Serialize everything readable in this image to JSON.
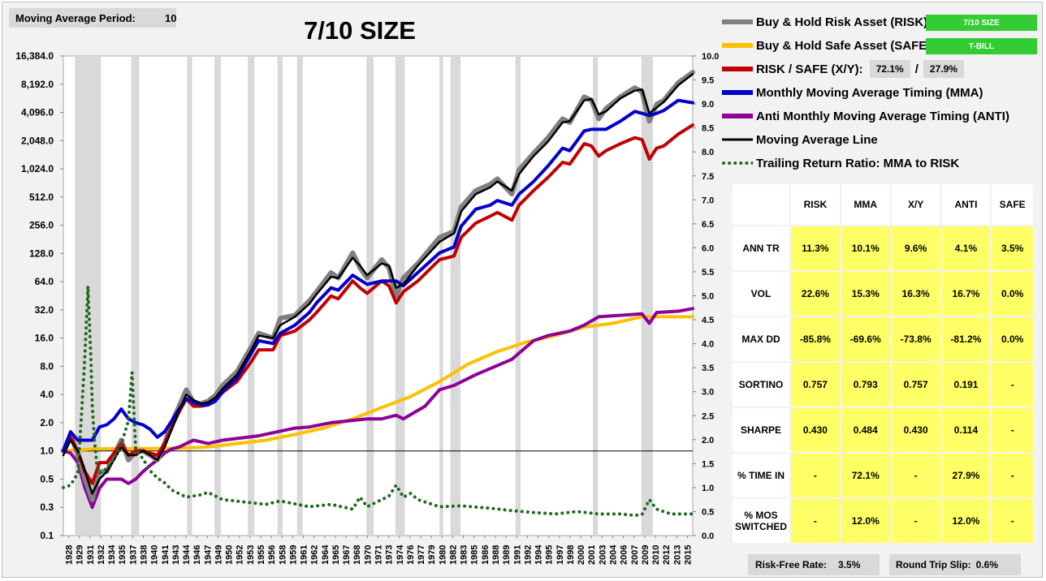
{
  "header": {
    "ma_period_label": "Moving Average Period:",
    "ma_period_value": "10",
    "title": "7/10 SIZE"
  },
  "legend": {
    "risk_label": "Buy & Hold Risk Asset (RISK):",
    "risk_tag": "7/10 SIZE",
    "safe_label": "Buy & Hold Safe Asset (SAFE):",
    "safe_tag": "T-BILL",
    "xy_label": "RISK / SAFE (X/Y):",
    "xy_risk_pct": "72.1%",
    "xy_sep": "/",
    "xy_safe_pct": "27.9%",
    "mma_label": "Monthly Moving Average Timing (MMA)",
    "anti_label": "Anti Monthly Moving Average Timing (ANTI)",
    "ma_line_label": "Moving Average Line",
    "ratio_label": "Trailing Return Ratio: MMA to RISK"
  },
  "stats": {
    "columns": [
      "",
      "RISK",
      "MMA",
      "X/Y",
      "ANTI",
      "SAFE"
    ],
    "rows": [
      {
        "label": "ANN TR",
        "values": [
          "11.3%",
          "10.1%",
          "9.6%",
          "4.1%",
          "3.5%"
        ]
      },
      {
        "label": "VOL",
        "values": [
          "22.6%",
          "15.3%",
          "16.3%",
          "16.7%",
          "0.0%"
        ]
      },
      {
        "label": "MAX DD",
        "values": [
          "-85.8%",
          "-69.6%",
          "-73.8%",
          "-81.2%",
          "0.0%"
        ]
      },
      {
        "label": "SORTINO",
        "values": [
          "0.757",
          "0.793",
          "0.757",
          "0.191",
          "-"
        ]
      },
      {
        "label": "SHARPE",
        "values": [
          "0.430",
          "0.484",
          "0.430",
          "0.114",
          "-"
        ]
      },
      {
        "label": "% TIME IN",
        "values": [
          "-",
          "72.1%",
          "-",
          "27.9%",
          "-"
        ]
      },
      {
        "label": "% MOS SWITCHED",
        "values": [
          "-",
          "12.0%",
          "-",
          "12.0%",
          "-"
        ]
      }
    ]
  },
  "footer": {
    "rf_label": "Risk-Free Rate:",
    "rf_value": "3.5%",
    "slip_label": "Round Trip Slip:",
    "slip_value": "0.6%"
  },
  "colors": {
    "risk": "#808080",
    "safe": "#ffc000",
    "xy": "#c00000",
    "mma": "#0000cc",
    "anti": "#8e0096",
    "ma_line": "#000000",
    "ratio": "#1e6b1e",
    "recession": "#d9d9d9"
  },
  "chart_data": {
    "type": "line",
    "y_left_scale": "log2",
    "y_left_ticks": [
      "16,384.0",
      "8,192.0",
      "4,096.0",
      "2,048.0",
      "1,024.0",
      "512.0",
      "256.0",
      "128.0",
      "64.0",
      "32.0",
      "16.0",
      "8.0",
      "4.0",
      "2.0",
      "1.0",
      "0.5",
      "0.3",
      "0.1"
    ],
    "y_left_tick_values": [
      16384,
      8192,
      4096,
      2048,
      1024,
      512,
      256,
      128,
      64,
      32,
      16,
      8,
      4,
      2,
      1,
      0.5,
      0.25,
      0.125
    ],
    "y_right_ticks": [
      "10.0",
      "9.5",
      "9.0",
      "8.5",
      "8.0",
      "7.5",
      "7.0",
      "6.5",
      "6.0",
      "5.5",
      "5.0",
      "4.5",
      "4.0",
      "3.5",
      "3.0",
      "2.5",
      "2.0",
      "1.5",
      "1.0",
      "0.5",
      "0.0"
    ],
    "y_right_range": [
      0,
      10
    ],
    "x_range": [
      1928,
      2015
    ],
    "x_ticks": [
      "1928",
      "1929",
      "1931",
      "1932",
      "1934",
      "1935",
      "1937",
      "1938",
      "1940",
      "1941",
      "1943",
      "1944",
      "1946",
      "1947",
      "1949",
      "1950",
      "1952",
      "1953",
      "1955",
      "1956",
      "1958",
      "1959",
      "1961",
      "1962",
      "1964",
      "1965",
      "1967",
      "1968",
      "1970",
      "1971",
      "1973",
      "1974",
      "1976",
      "1977",
      "1979",
      "1980",
      "1982",
      "1983",
      "1985",
      "1986",
      "1988",
      "1989",
      "1991",
      "1992",
      "1994",
      "1995",
      "1997",
      "1998",
      "2000",
      "2001",
      "2003",
      "2004",
      "2006",
      "2007",
      "2009",
      "2010",
      "2012",
      "2013",
      "2015"
    ],
    "recessions": [
      [
        1929.6,
        1933.2
      ],
      [
        1937.4,
        1938.5
      ],
      [
        1945.1,
        1945.8
      ],
      [
        1948.9,
        1949.8
      ],
      [
        1953.5,
        1954.4
      ],
      [
        1957.6,
        1958.3
      ],
      [
        1960.3,
        1961.1
      ],
      [
        1969.9,
        1970.9
      ],
      [
        1973.9,
        1975.2
      ],
      [
        1980.0,
        1980.5
      ],
      [
        1981.5,
        1982.9
      ],
      [
        1990.5,
        1991.2
      ],
      [
        2001.2,
        2001.9
      ],
      [
        2007.9,
        2009.5
      ]
    ],
    "series": [
      {
        "name": "Buy & Hold Risk Asset (RISK)",
        "axis": "left",
        "x": [
          1928,
          1929,
          1930,
          1931,
          1932,
          1933,
          1934,
          1935,
          1936,
          1937,
          1938,
          1939,
          1940,
          1941,
          1942,
          1943,
          1944,
          1945,
          1946,
          1947,
          1948,
          1949,
          1950,
          1952,
          1954,
          1955,
          1957,
          1958,
          1960,
          1962,
          1963,
          1965,
          1966,
          1968,
          1969,
          1970,
          1972,
          1973,
          1974,
          1975,
          1977,
          1980,
          1982,
          1983,
          1985,
          1987,
          1988,
          1990,
          1991,
          1993,
          1995,
          1997,
          1998,
          2000,
          2001,
          2002,
          2003,
          2005,
          2007,
          2008,
          2009,
          2010,
          2011,
          2013,
          2015
        ],
        "y": [
          1.0,
          1.5,
          0.9,
          0.5,
          0.3,
          0.6,
          0.6,
          0.9,
          1.3,
          0.8,
          1.0,
          1.0,
          0.9,
          0.8,
          1.2,
          2.0,
          3.0,
          4.5,
          3.3,
          3.2,
          3.4,
          3.9,
          5.0,
          7.0,
          13,
          18,
          16,
          26,
          28,
          40,
          50,
          80,
          70,
          130,
          90,
          70,
          110,
          90,
          45,
          70,
          100,
          190,
          220,
          400,
          600,
          700,
          800,
          550,
          1000,
          1500,
          2200,
          3500,
          3200,
          6000,
          5500,
          3500,
          4500,
          6000,
          7500,
          6800,
          3300,
          5000,
          5500,
          8500,
          11000
        ]
      },
      {
        "name": "Moving Average Line",
        "axis": "left",
        "x": [
          1928,
          1929,
          1930,
          1931,
          1932,
          1933,
          1934,
          1935,
          1936,
          1937,
          1938,
          1939,
          1940,
          1941,
          1942,
          1943,
          1944,
          1945,
          1946,
          1947,
          1948,
          1949,
          1950,
          1952,
          1954,
          1955,
          1957,
          1958,
          1960,
          1962,
          1963,
          1965,
          1966,
          1968,
          1969,
          1970,
          1972,
          1973,
          1974,
          1975,
          1977,
          1980,
          1982,
          1983,
          1985,
          1987,
          1988,
          1990,
          1991,
          1993,
          1995,
          1997,
          1998,
          2000,
          2001,
          2002,
          2003,
          2005,
          2007,
          2008,
          2009,
          2010,
          2011,
          2013,
          2015
        ],
        "y": [
          0.9,
          1.3,
          1.0,
          0.6,
          0.35,
          0.5,
          0.6,
          0.8,
          1.1,
          0.9,
          0.9,
          1.0,
          0.9,
          0.8,
          1.1,
          1.7,
          2.7,
          4.0,
          3.5,
          3.2,
          3.3,
          3.7,
          4.6,
          6.5,
          12,
          17,
          16,
          22,
          27,
          37,
          47,
          72,
          70,
          115,
          95,
          75,
          100,
          95,
          55,
          60,
          95,
          170,
          210,
          360,
          550,
          650,
          750,
          600,
          900,
          1400,
          2000,
          3200,
          3300,
          5500,
          5700,
          3900,
          4200,
          5800,
          7000,
          7200,
          4000,
          4600,
          5300,
          8000,
          10500
        ]
      },
      {
        "name": "Monthly Moving Average Timing (MMA)",
        "axis": "left",
        "x": [
          1928,
          1929,
          1930,
          1931,
          1932,
          1933,
          1934,
          1935,
          1936,
          1937,
          1938,
          1939,
          1940,
          1941,
          1942,
          1943,
          1944,
          1945,
          1946,
          1947,
          1948,
          1949,
          1950,
          1952,
          1954,
          1955,
          1957,
          1958,
          1960,
          1962,
          1963,
          1965,
          1966,
          1968,
          1970,
          1972,
          1974,
          1975,
          1977,
          1980,
          1982,
          1983,
          1985,
          1987,
          1988,
          1990,
          1991,
          1993,
          1995,
          1997,
          1998,
          2000,
          2001,
          2003,
          2005,
          2007,
          2008,
          2009,
          2010,
          2011,
          2013,
          2015
        ],
        "y": [
          1.0,
          1.6,
          1.3,
          1.3,
          1.3,
          1.8,
          1.9,
          2.2,
          2.8,
          2.2,
          2.0,
          1.9,
          1.7,
          1.4,
          1.6,
          2.1,
          2.8,
          3.6,
          3.3,
          3.1,
          3.1,
          3.4,
          4.3,
          6.0,
          11,
          15,
          14,
          18,
          22,
          30,
          38,
          55,
          52,
          75,
          60,
          65,
          65,
          58,
          80,
          130,
          150,
          250,
          380,
          420,
          470,
          420,
          550,
          750,
          1100,
          1700,
          1600,
          2600,
          2700,
          2700,
          3300,
          4200,
          4000,
          3800,
          4000,
          4300,
          5500,
          5200
        ]
      },
      {
        "name": "RISK / SAFE (X/Y)",
        "axis": "left",
        "x": [
          1928,
          1929,
          1930,
          1931,
          1932,
          1933,
          1934,
          1935,
          1936,
          1937,
          1938,
          1939,
          1940,
          1941,
          1942,
          1943,
          1944,
          1945,
          1946,
          1947,
          1948,
          1949,
          1950,
          1952,
          1954,
          1955,
          1957,
          1958,
          1960,
          1962,
          1963,
          1965,
          1966,
          1968,
          1969,
          1970,
          1972,
          1973,
          1974,
          1975,
          1977,
          1980,
          1982,
          1983,
          1985,
          1987,
          1988,
          1990,
          1991,
          1993,
          1995,
          1997,
          1998,
          2000,
          2001,
          2002,
          2003,
          2005,
          2007,
          2008,
          2009,
          2010,
          2011,
          2013,
          2015
        ],
        "y": [
          1.0,
          1.4,
          1.0,
          0.6,
          0.45,
          0.75,
          0.75,
          0.95,
          1.2,
          0.9,
          1.0,
          1.0,
          0.95,
          0.9,
          1.2,
          1.8,
          2.6,
          3.6,
          3.0,
          3.0,
          3.1,
          3.4,
          4.2,
          5.5,
          9,
          12,
          12,
          17,
          19,
          25,
          30,
          45,
          42,
          65,
          55,
          48,
          65,
          58,
          38,
          50,
          65,
          110,
          120,
          190,
          270,
          320,
          350,
          290,
          420,
          600,
          830,
          1200,
          1150,
          1900,
          1800,
          1400,
          1600,
          1900,
          2200,
          2100,
          1300,
          1700,
          1800,
          2400,
          3000
        ]
      },
      {
        "name": "Anti Monthly Moving Average Timing (ANTI)",
        "axis": "left",
        "x": [
          1928,
          1929,
          1930,
          1931,
          1932,
          1933,
          1934,
          1935,
          1936,
          1937,
          1938,
          1939,
          1940,
          1941,
          1942,
          1943,
          1944,
          1945,
          1946,
          1947,
          1948,
          1950,
          1955,
          1960,
          1962,
          1965,
          1970,
          1972,
          1974,
          1975,
          1978,
          1980,
          1982,
          1985,
          1990,
          1993,
          1995,
          1998,
          2000,
          2002,
          2005,
          2008,
          2009,
          2010,
          2013,
          2015
        ],
        "y": [
          1.0,
          0.95,
          0.75,
          0.4,
          0.25,
          0.4,
          0.5,
          0.5,
          0.5,
          0.45,
          0.5,
          0.6,
          0.7,
          0.8,
          0.95,
          1.05,
          1.1,
          1.2,
          1.3,
          1.25,
          1.2,
          1.3,
          1.45,
          1.75,
          1.8,
          2.0,
          2.2,
          2.2,
          2.4,
          2.2,
          3.0,
          4.5,
          5.0,
          6.5,
          9.5,
          15,
          17,
          19,
          22,
          27,
          28,
          29,
          23,
          30,
          31,
          33
        ]
      },
      {
        "name": "Buy & Hold Safe Asset (SAFE)",
        "axis": "left",
        "x": [
          1928,
          1932,
          1936,
          1940,
          1944,
          1948,
          1952,
          1956,
          1960,
          1964,
          1968,
          1972,
          1976,
          1980,
          1984,
          1988,
          1992,
          1996,
          2000,
          2004,
          2007,
          2008,
          2010,
          2015
        ],
        "y": [
          1.0,
          1.05,
          1.06,
          1.06,
          1.07,
          1.1,
          1.2,
          1.3,
          1.5,
          1.75,
          2.2,
          2.9,
          3.8,
          5.5,
          8.5,
          11.5,
          14.5,
          17,
          21,
          23,
          26,
          27,
          27,
          27
        ]
      },
      {
        "name": "Trailing Return Ratio: MMA to RISK",
        "axis": "right",
        "style": "dotted",
        "x": [
          1928,
          1929,
          1930,
          1930.5,
          1931,
          1931.4,
          1931.8,
          1932,
          1932.3,
          1932.6,
          1933,
          1934,
          1935,
          1936,
          1937,
          1937.5,
          1938,
          1938.5,
          1939,
          1940,
          1941,
          1942,
          1943,
          1945,
          1947,
          1948,
          1950,
          1953,
          1956,
          1958,
          1962,
          1965,
          1968,
          1969,
          1970,
          1972,
          1973,
          1974,
          1975,
          1976,
          1977,
          1978,
          1980,
          1983,
          1987,
          1990,
          1993,
          1996,
          1999,
          2002,
          2005,
          2007,
          2008,
          2009,
          2010,
          2012,
          2015
        ],
        "y": [
          1.0,
          1.05,
          1.3,
          2.5,
          3.8,
          5.2,
          3.7,
          2.7,
          2.0,
          1.5,
          1.3,
          1.4,
          1.6,
          1.9,
          2.4,
          3.4,
          1.8,
          1.7,
          1.6,
          1.35,
          1.2,
          1.1,
          0.95,
          0.8,
          0.85,
          0.9,
          0.75,
          0.7,
          0.65,
          0.72,
          0.6,
          0.65,
          0.55,
          0.8,
          0.6,
          0.75,
          0.82,
          1.05,
          0.8,
          0.88,
          0.75,
          0.7,
          0.6,
          0.62,
          0.57,
          0.52,
          0.48,
          0.45,
          0.5,
          0.45,
          0.45,
          0.42,
          0.44,
          0.75,
          0.55,
          0.45,
          0.45
        ]
      }
    ]
  }
}
